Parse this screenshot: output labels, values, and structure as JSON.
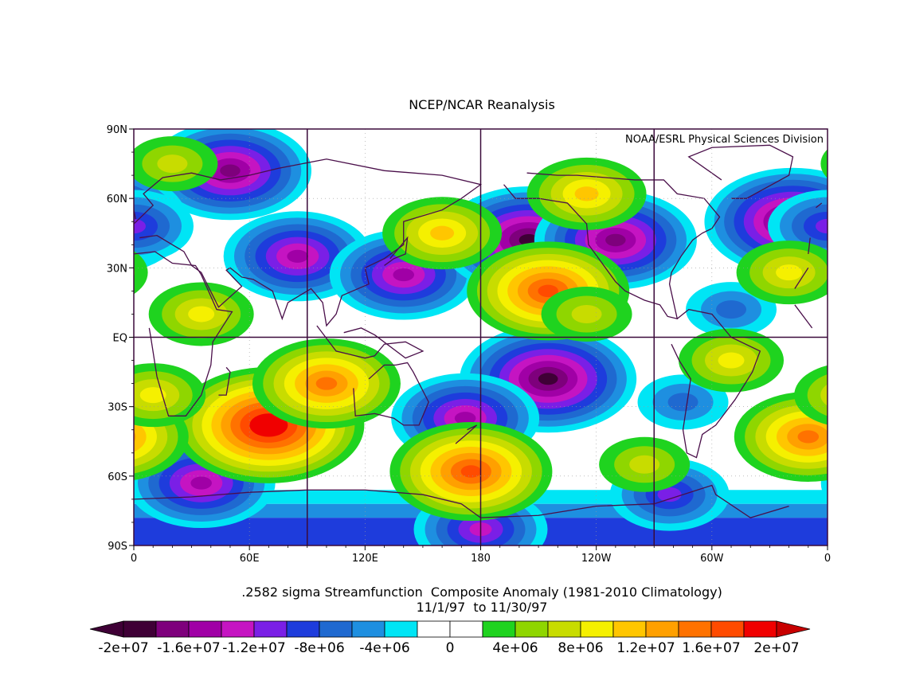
{
  "title": "NCEP/NCAR Reanalysis",
  "credit": "NOAA/ESRL Physical Sciences Division",
  "lat_ticks": [
    "90N",
    "60N",
    "30N",
    "EQ",
    "30S",
    "60S",
    "90S"
  ],
  "lon_ticks": [
    "0",
    "60E",
    "120E",
    "180",
    "120W",
    "60W",
    "0"
  ],
  "caption_line1": ".2582 sigma Streamfunction  Composite Anomaly (1981-2010 Climatology)",
  "caption_line2": "11/1/97  to 11/30/97",
  "colorbar": {
    "labels": [
      "-2e+07",
      "-1.6e+07",
      "-1.2e+07",
      "-8e+06",
      "-4e+06",
      "0",
      "4e+06",
      "8e+06",
      "1.2e+07",
      "1.6e+07",
      "2e+07"
    ],
    "colors": [
      "#3f0036",
      "#7e007c",
      "#a000a6",
      "#c514c2",
      "#7a1fe6",
      "#1e3cdc",
      "#1f69d0",
      "#1e8fe0",
      "#00e5f5",
      "#ffffff",
      "#ffffff",
      "#1fd31f",
      "#8fd600",
      "#c8dc00",
      "#f5f000",
      "#ffc600",
      "#ffa000",
      "#ff7200",
      "#ff4b00",
      "#f00000"
    ],
    "under_color": "#3f0036",
    "over_color": "#c80000"
  },
  "chart_data": {
    "type": "heatmap",
    "title": "NCEP/NCAR Reanalysis",
    "variable": ".2582 sigma Streamfunction  Composite Anomaly (1981-2010 Climatology)",
    "period": "11/1/97  to 11/30/97",
    "xlabel": "",
    "ylabel": "",
    "xlim": [
      0,
      360
    ],
    "ylim": [
      -90,
      90
    ],
    "grid": true,
    "anomalies": [
      {
        "lon": 50,
        "lat": 72,
        "value": -16000000.0
      },
      {
        "lon": 85,
        "lat": 35,
        "value": -14000000.0
      },
      {
        "lon": 140,
        "lat": 27,
        "value": -14000000.0
      },
      {
        "lon": 205,
        "lat": 42,
        "value": -18000000.0
      },
      {
        "lon": 250,
        "lat": 42,
        "value": -16000000.0
      },
      {
        "lon": 342,
        "lat": 50,
        "value": -18000000.0
      },
      {
        "lon": 0,
        "lat": 48,
        "value": -10000000.0
      },
      {
        "lon": 215,
        "lat": -18,
        "value": -18000000.0
      },
      {
        "lon": 172,
        "lat": -35,
        "value": -14000000.0
      },
      {
        "lon": 35,
        "lat": -63,
        "value": -14000000.0
      },
      {
        "lon": 285,
        "lat": -28,
        "value": -6000000.0
      },
      {
        "lon": 278,
        "lat": -68,
        "value": -10000000.0
      },
      {
        "lon": 180,
        "lat": -83,
        "value": -12000000.0
      },
      {
        "lon": 310,
        "lat": 12,
        "value": -6000000.0
      },
      {
        "lon": 215,
        "lat": 20,
        "value": 16000000.0
      },
      {
        "lon": 235,
        "lat": 62,
        "value": 10000000.0
      },
      {
        "lon": 160,
        "lat": 45,
        "value": 10000000.0
      },
      {
        "lon": 70,
        "lat": -38,
        "value": 20000000.0
      },
      {
        "lon": 100,
        "lat": -20,
        "value": 14000000.0
      },
      {
        "lon": 175,
        "lat": -58,
        "value": 16000000.0
      },
      {
        "lon": 350,
        "lat": -43,
        "value": 14000000.0
      },
      {
        "lon": 35,
        "lat": 10,
        "value": 8000000.0
      },
      {
        "lon": 340,
        "lat": 28,
        "value": 8000000.0
      },
      {
        "lon": 20,
        "lat": 75,
        "value": 6000000.0
      },
      {
        "lon": 310,
        "lat": -10,
        "value": 8000000.0
      },
      {
        "lon": 10,
        "lat": -25,
        "value": 8000000.0
      },
      {
        "lon": 265,
        "lat": -55,
        "value": 6000000.0
      },
      {
        "lon": 235,
        "lat": 10,
        "value": 6000000.0
      }
    ]
  }
}
